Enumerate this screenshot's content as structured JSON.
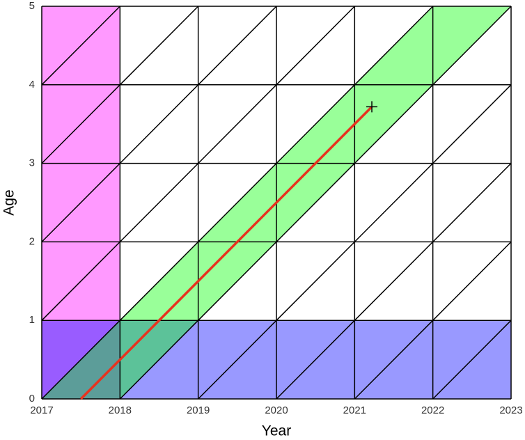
{
  "chart_data": {
    "type": "lexis",
    "xlabel": "Year",
    "ylabel": "Age",
    "xlim": [
      2017,
      2023
    ],
    "ylim": [
      0,
      5
    ],
    "xticks": [
      2017,
      2018,
      2019,
      2020,
      2021,
      2022,
      2023
    ],
    "yticks": [
      0,
      1,
      2,
      3,
      4,
      5
    ],
    "period": {
      "x": [
        2017,
        2018
      ],
      "color": "#ff00ff"
    },
    "age_band": {
      "y": [
        0,
        1
      ],
      "color": "#0000ff"
    },
    "cohort": {
      "x": [
        2017,
        2018
      ],
      "color": "#00ff00"
    },
    "lifeline": {
      "x": [
        2017.5,
        2021.22
      ],
      "y": [
        0,
        3.72
      ],
      "color": "#e8321e"
    },
    "opacity": 0.4
  }
}
